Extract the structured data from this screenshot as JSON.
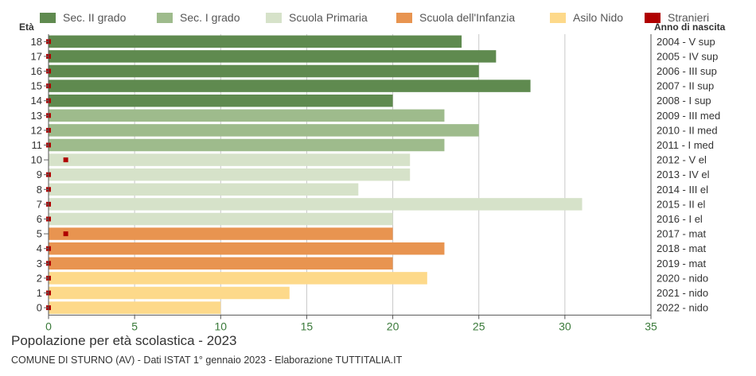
{
  "legend": [
    {
      "label": "Sec. II grado",
      "color": "#5f8a4f"
    },
    {
      "label": "Sec. I grado",
      "color": "#9ebb8c"
    },
    {
      "label": "Scuola Primaria",
      "color": "#d6e2c9"
    },
    {
      "label": "Scuola dell'Infanzia",
      "color": "#e89450"
    },
    {
      "label": "Asilo Nido",
      "color": "#fdd98a"
    },
    {
      "label": "Stranieri",
      "color": "#b00000"
    }
  ],
  "header": {
    "left": "Età",
    "right": "Anno di nascita"
  },
  "title": "Popolazione per età scolastica - 2023",
  "subtitle": "COMUNE DI STURNO (AV) - Dati ISTAT 1° gennaio 2023 - Elaborazione TUTTITALIA.IT",
  "colors": {
    "sec2": "#5f8a4f",
    "sec1": "#9ebb8c",
    "prim": "#d6e2c9",
    "inf": "#e89450",
    "nido": "#fdd98a",
    "foreign": "#b00000",
    "axis_tick": "#3a7a3a",
    "grid": "#c8c8c8"
  },
  "chart_data": {
    "type": "bar",
    "orientation": "horizontal",
    "xlim": [
      0,
      35
    ],
    "xticks": [
      0,
      5,
      10,
      15,
      20,
      25,
      30,
      35
    ],
    "rows": [
      {
        "age": "18",
        "year": "2004 - V sup",
        "value": 24,
        "foreign": 0,
        "group": "sec2"
      },
      {
        "age": "17",
        "year": "2005 - IV sup",
        "value": 26,
        "foreign": 0,
        "group": "sec2"
      },
      {
        "age": "16",
        "year": "2006 - III sup",
        "value": 25,
        "foreign": 0,
        "group": "sec2"
      },
      {
        "age": "15",
        "year": "2007 - II sup",
        "value": 28,
        "foreign": 0,
        "group": "sec2"
      },
      {
        "age": "14",
        "year": "2008 - I sup",
        "value": 20,
        "foreign": 0,
        "group": "sec2"
      },
      {
        "age": "13",
        "year": "2009 - III med",
        "value": 23,
        "foreign": 0,
        "group": "sec1"
      },
      {
        "age": "12",
        "year": "2010 - II med",
        "value": 25,
        "foreign": 0,
        "group": "sec1"
      },
      {
        "age": "11",
        "year": "2011 - I med",
        "value": 23,
        "foreign": 0,
        "group": "sec1"
      },
      {
        "age": "10",
        "year": "2012 - V el",
        "value": 21,
        "foreign": 1,
        "group": "prim"
      },
      {
        "age": "9",
        "year": "2013 - IV el",
        "value": 21,
        "foreign": 0,
        "group": "prim"
      },
      {
        "age": "8",
        "year": "2014 - III el",
        "value": 18,
        "foreign": 0,
        "group": "prim"
      },
      {
        "age": "7",
        "year": "2015 - II el",
        "value": 31,
        "foreign": 0,
        "group": "prim"
      },
      {
        "age": "6",
        "year": "2016 - I el",
        "value": 20,
        "foreign": 0,
        "group": "prim"
      },
      {
        "age": "5",
        "year": "2017 - mat",
        "value": 20,
        "foreign": 1,
        "group": "inf"
      },
      {
        "age": "4",
        "year": "2018 - mat",
        "value": 23,
        "foreign": 0,
        "group": "inf"
      },
      {
        "age": "3",
        "year": "2019 - mat",
        "value": 20,
        "foreign": 0,
        "group": "inf"
      },
      {
        "age": "2",
        "year": "2020 - nido",
        "value": 22,
        "foreign": 0,
        "group": "nido"
      },
      {
        "age": "1",
        "year": "2021 - nido",
        "value": 14,
        "foreign": 0,
        "group": "nido"
      },
      {
        "age": "0",
        "year": "2022 - nido",
        "value": 10,
        "foreign": 0,
        "group": "nido"
      }
    ]
  }
}
